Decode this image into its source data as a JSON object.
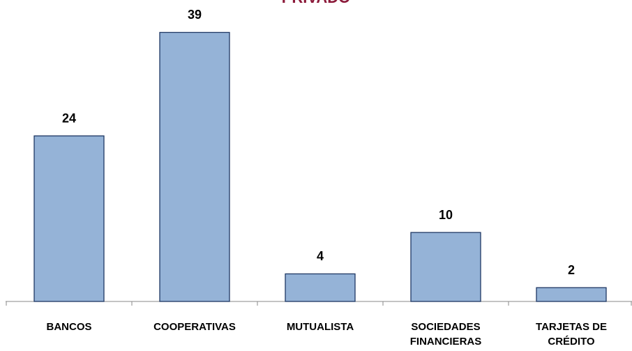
{
  "chart_data": {
    "type": "bar",
    "title": "PRIVADO",
    "categories": [
      "BANCOS",
      "COOPERATIVAS",
      "MUTUALISTA",
      "SOCIEDADES\nFINANCIERAS",
      "TARJETAS DE\nCRÉDITO"
    ],
    "values": [
      24,
      39,
      4,
      10,
      2
    ],
    "color": "#95b3d7",
    "ylim": [
      0,
      43.7
    ]
  }
}
